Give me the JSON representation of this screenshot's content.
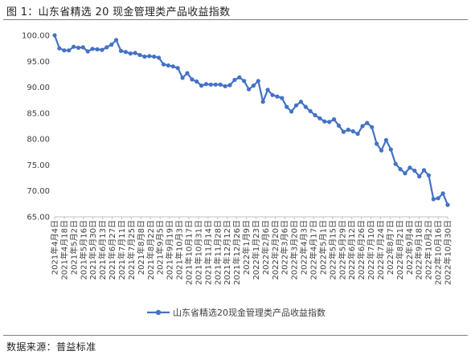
{
  "figure_title": "图 1：山东省精选 20 现金管理类产品收益指数",
  "source_note": "数据来源：普益标准",
  "chart_data": {
    "type": "line",
    "title": "",
    "xlabel": "",
    "ylabel": "",
    "ylim": [
      65,
      100
    ],
    "yticks": [
      65,
      70,
      75,
      80,
      85,
      90,
      95,
      100
    ],
    "ytick_labels": [
      "65.00",
      "70.00",
      "75.00",
      "80.00",
      "85.00",
      "90.00",
      "95.00",
      "100.00"
    ],
    "grid": "none",
    "legend_position": "bottom",
    "color": "#4472C4",
    "x_labels": [
      "2021年4月4日",
      "2021年4月18日",
      "2021年5月2日",
      "2021年5月16日",
      "2021年5月30日",
      "2021年6月13日",
      "2021年6月27日",
      "2021年7月11日",
      "2021年7月25日",
      "2021年8月8日",
      "2021年8月22日",
      "2021年9月5日",
      "2021年9月19日",
      "2021年10月3日",
      "2021年10月17日",
      "2021年10月31日",
      "2021年11月14日",
      "2021年11月28日",
      "2021年12月12日",
      "2021年12月26日",
      "2022年1月9日",
      "2022年1月23日",
      "2022年2月6日",
      "2022年2月20日",
      "2022年3月6日",
      "2022年3月20日",
      "2022年4月3日",
      "2022年4月17日",
      "2022年5月1日",
      "2022年5月15日",
      "2022年5月29日",
      "2022年6月12日",
      "2022年6月26日",
      "2022年7月10日",
      "2022年7月24日",
      "2022年8月7日",
      "2022年8月21日",
      "2022年9月4日",
      "2022年9月18日",
      "2022年10月2日",
      "2022年10月16日",
      "2022年10月30日"
    ],
    "series": [
      {
        "name": "山东省精选20现金管理类产品收益指数",
        "values": [
          100.0,
          97.5,
          97.1,
          97.1,
          97.8,
          97.6,
          97.7,
          96.9,
          97.4,
          97.3,
          97.2,
          97.7,
          98.2,
          99.1,
          97.0,
          96.8,
          96.5,
          96.6,
          96.2,
          95.9,
          96.0,
          95.9,
          95.7,
          94.4,
          94.2,
          94.0,
          93.7,
          91.8,
          92.7,
          91.5,
          91.1,
          90.3,
          90.6,
          90.5,
          90.5,
          90.5,
          90.2,
          90.4,
          91.4,
          91.9,
          91.2,
          89.6,
          90.3,
          91.2,
          87.2,
          89.5,
          88.5,
          88.2,
          87.9,
          86.2,
          85.3,
          86.5,
          87.2,
          86.2,
          85.4,
          84.6,
          84.0,
          83.4,
          83.3,
          83.8,
          82.6,
          81.4,
          81.8,
          81.5,
          81.0,
          82.5,
          83.1,
          82.3,
          79.1,
          77.8,
          79.8,
          78.0,
          75.2,
          74.2,
          73.4,
          74.5,
          73.9,
          72.8,
          74.0,
          73.0,
          68.4,
          68.6,
          69.5,
          67.3
        ]
      }
    ]
  }
}
